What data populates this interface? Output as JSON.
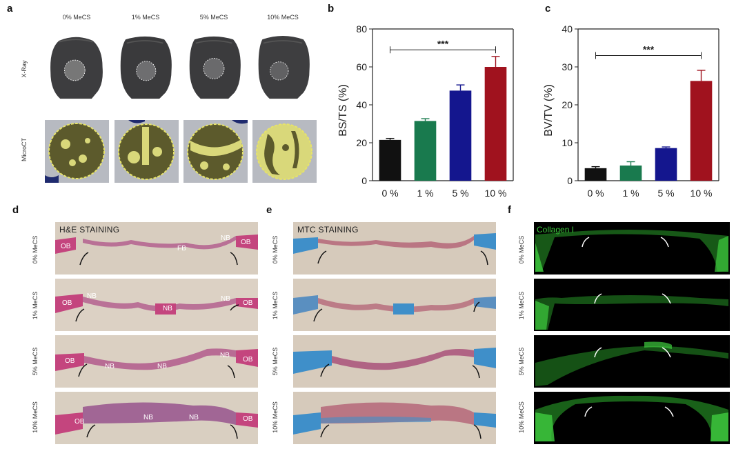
{
  "panel_labels": {
    "a": "a",
    "b": "b",
    "c": "c",
    "d": "d",
    "e": "e",
    "f": "f"
  },
  "panel_a": {
    "columns": [
      "0% MeCS",
      "1% MeCS",
      "5% MeCS",
      "10% MeCS"
    ],
    "rows": [
      "X-Ray",
      "MicroCT"
    ]
  },
  "chart_data": [
    {
      "type": "bar",
      "categories": [
        "0 %",
        "1 %",
        "5 %",
        "10 %"
      ],
      "values": [
        21.5,
        31.5,
        47.5,
        60
      ],
      "errors": [
        0.8,
        1.2,
        3,
        5.5
      ],
      "colors": [
        "#111111",
        "#197a4e",
        "#14168e",
        "#a0121e"
      ],
      "ylabel": "BS/TS (%)",
      "ylim": [
        0,
        80
      ],
      "yticks": [
        0,
        20,
        40,
        60,
        80
      ],
      "significance": {
        "from": 0,
        "to": 3,
        "label": "***",
        "level": 69
      }
    },
    {
      "type": "bar",
      "categories": [
        "0 %",
        "1 %",
        "5 %",
        "10 %"
      ],
      "values": [
        3.3,
        4.0,
        8.6,
        26.3
      ],
      "errors": [
        0.4,
        1.0,
        0.3,
        2.8
      ],
      "colors": [
        "#111111",
        "#197a4e",
        "#14168e",
        "#a0121e"
      ],
      "ylabel": "BV/TV (%)",
      "ylim": [
        0,
        40
      ],
      "yticks": [
        0,
        10,
        20,
        30,
        40
      ],
      "significance": {
        "from": 0,
        "to": 3,
        "label": "***",
        "level": 33
      }
    }
  ],
  "panel_d": {
    "title": "H&E STAINING",
    "rows": [
      "0% MeCS",
      "1% MeCS",
      "5% MeCS",
      "10% MeCS"
    ],
    "annotations": [
      [
        "OB",
        "FB",
        "NB",
        "OB"
      ],
      [
        "OB",
        "NB",
        "NB",
        "NB",
        "OB"
      ],
      [
        "OB",
        "NB",
        "NB",
        "NB",
        "OB"
      ],
      [
        "OB",
        "NB",
        "NB",
        "OB"
      ]
    ]
  },
  "panel_e": {
    "title": "MTC STAINING",
    "rows": [
      "0% MeCS",
      "1% MeCS",
      "5% MeCS",
      "10% MeCS"
    ]
  },
  "panel_f": {
    "title": "Collagen I",
    "rows": [
      "0% MeCS",
      "1% MeCS",
      "5% MeCS",
      "10% MeCS"
    ]
  },
  "colors": {
    "he_background": "#d8cdbf",
    "he_tissue": "#b25a8c",
    "mtc_background": "#d6cabb",
    "mtc_blue": "#3f8fc9",
    "fluor_background": "#000000",
    "fluor_green": "#3ecc3e",
    "microct_bone": "#5c5a2c",
    "microct_ring": "#e6e36a"
  }
}
